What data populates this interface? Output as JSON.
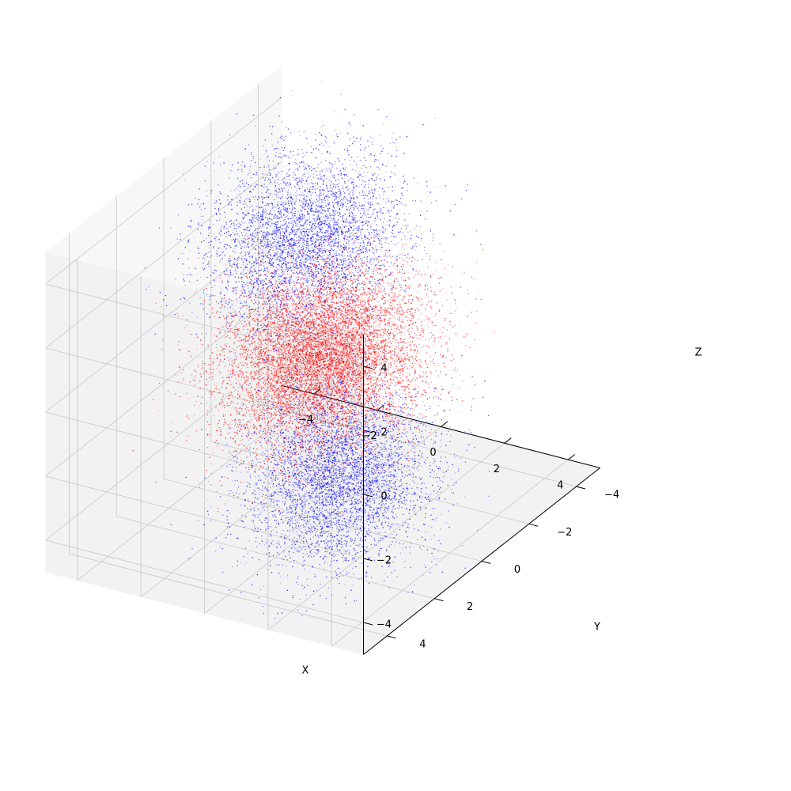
{
  "chart_data": {
    "type": "scatter",
    "projection": "3d",
    "title": "",
    "xlabel": "X",
    "ylabel": "Y",
    "zlabel": "Z",
    "xlim": [
      -5,
      5
    ],
    "ylim": [
      -5,
      5
    ],
    "zlim": [
      -5,
      5
    ],
    "x_ticks": [
      -4,
      -2,
      0,
      2,
      4
    ],
    "y_ticks": [
      -4,
      -2,
      0,
      2,
      4
    ],
    "z_ticks": [
      -4,
      -2,
      0,
      2,
      4
    ],
    "x_tick_labels": [
      "−4",
      "−2",
      "0",
      "2",
      "4"
    ],
    "y_tick_labels": [
      "−4",
      "−2",
      "0",
      "2",
      "4"
    ],
    "z_tick_labels": [
      "−4",
      "−2",
      "0",
      "2",
      "4"
    ],
    "grid": true,
    "legend": "none",
    "clusters": [
      {
        "color": "#0000ff",
        "center": [
          -2,
          -2,
          2
        ],
        "std": 1.2,
        "points": 5000
      },
      {
        "color": "#ff0000",
        "center": [
          2,
          2,
          2
        ],
        "std": 1.2,
        "points": 5000
      },
      {
        "color": "#ff0000",
        "center": [
          -2,
          -2,
          -2
        ],
        "std": 1.2,
        "points": 5000
      },
      {
        "color": "#0000ff",
        "center": [
          2,
          2,
          -2
        ],
        "std": 1.2,
        "points": 5000
      }
    ]
  }
}
